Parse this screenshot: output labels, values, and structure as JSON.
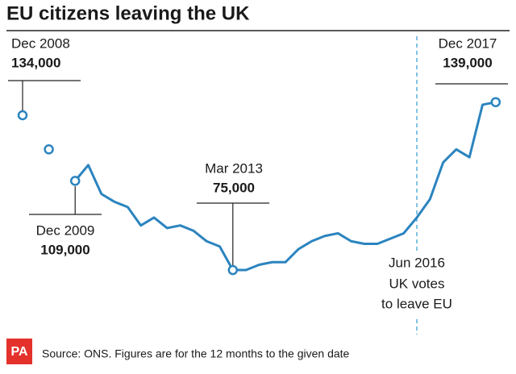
{
  "chart_data": {
    "type": "line",
    "title": "EU citizens leaving the UK",
    "source": "Source: ONS. Figures are for the 12 months to the given date",
    "logo": "PA",
    "categories": [
      "Dec 2008",
      null,
      null,
      null,
      "Dec 2009",
      null,
      null,
      null,
      null,
      null,
      null,
      null,
      null,
      null,
      null,
      null,
      "Mar 2013",
      null,
      null,
      null,
      null,
      null,
      null,
      null,
      null,
      null,
      null,
      null,
      null,
      null,
      "Jun 2016",
      null,
      null,
      null,
      null,
      null,
      "Dec 2017"
    ],
    "series": [
      {
        "name": null,
        "color": "#2b84bf",
        "values": [
          134000,
          null,
          121000,
          null,
          109000,
          115000,
          104000,
          101000,
          99000,
          92000,
          95000,
          91000,
          92000,
          90000,
          86000,
          84000,
          75000,
          75000,
          77000,
          78000,
          78000,
          83000,
          86000,
          88000,
          89000,
          86000,
          85000,
          85000,
          87000,
          89000,
          95000,
          102000,
          116000,
          121000,
          118000,
          138000,
          139000
        ],
        "value_labels": [
          "134,000",
          null,
          null,
          null,
          "109,000",
          null,
          null,
          null,
          null,
          null,
          null,
          null,
          null,
          null,
          null,
          null,
          "75,000",
          null,
          null,
          null,
          null,
          null,
          null,
          null,
          null,
          null,
          null,
          null,
          null,
          null,
          null,
          null,
          null,
          null,
          null,
          null,
          "139,000"
        ]
      }
    ],
    "events": [
      {
        "label": [
          "UK votes",
          "to leave EU"
        ]
      }
    ],
    "ylim": [
      72000,
      141000
    ]
  }
}
